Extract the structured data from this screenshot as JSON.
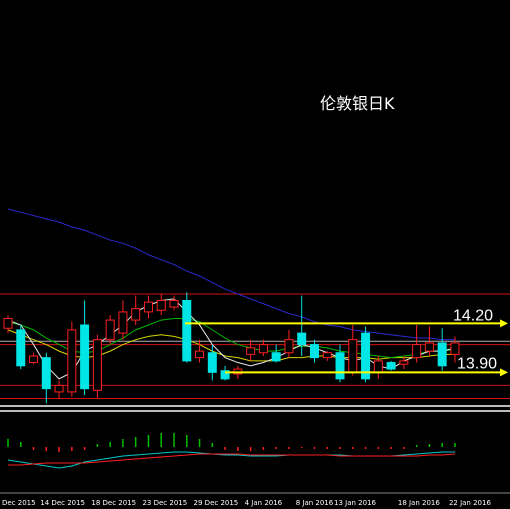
{
  "chart_data": [
    {
      "type": "candlestick",
      "title": "伦敦银日K",
      "categories": [
        "Dec 2015",
        null,
        null,
        "14 Dec 2015",
        null,
        null,
        null,
        "18 Dec 2015",
        null,
        null,
        null,
        "23 Dec 2015",
        null,
        null,
        null,
        "29 Dec 2015",
        null,
        null,
        null,
        "4 Jan 2016",
        null,
        null,
        null,
        "8 Jan 2016",
        null,
        null,
        "13 Jan 2016",
        null,
        null,
        null,
        null,
        "18 Jan 2016",
        null,
        null,
        null,
        "22 Jan 2016"
      ],
      "open": [
        14.17,
        14.16,
        13.96,
        13.99,
        13.78,
        13.78,
        14.19,
        13.79,
        14.1,
        14.14,
        14.22,
        14.27,
        14.28,
        14.3,
        14.34,
        13.99,
        14.02,
        13.91,
        13.89,
        14.01,
        14.02,
        14.02,
        14.02,
        14.14,
        14.07,
        13.99,
        14.02,
        13.9,
        14.14,
        13.9,
        13.96,
        13.95,
        13.99,
        14.03,
        14.08,
        14.01
      ],
      "high": [
        14.25,
        14.19,
        14.02,
        14.02,
        13.85,
        14.21,
        14.34,
        14.13,
        14.25,
        14.34,
        14.37,
        14.37,
        14.38,
        14.37,
        14.39,
        14.1,
        14.07,
        13.94,
        13.94,
        14.1,
        14.1,
        14.07,
        14.16,
        14.37,
        14.1,
        14.03,
        14.07,
        14.19,
        14.18,
        14.0,
        13.97,
        14.0,
        14.19,
        14.18,
        14.17,
        14.12
      ],
      "low": [
        14.14,
        13.92,
        13.95,
        13.71,
        13.74,
        13.75,
        13.76,
        13.74,
        14.07,
        14.1,
        14.19,
        14.23,
        14.25,
        14.28,
        13.96,
        13.96,
        13.85,
        13.85,
        13.86,
        13.97,
        14.0,
        13.96,
        13.99,
        14.0,
        13.96,
        13.97,
        13.84,
        13.88,
        13.84,
        13.86,
        13.91,
        13.92,
        13.96,
        14.0,
        13.91,
        13.96
      ],
      "close": [
        14.23,
        13.94,
        14.0,
        13.8,
        13.82,
        14.16,
        13.8,
        14.1,
        14.22,
        14.27,
        14.29,
        14.33,
        14.34,
        14.34,
        13.97,
        14.03,
        13.9,
        13.86,
        13.92,
        14.05,
        14.07,
        13.97,
        14.1,
        14.07,
        13.99,
        14.02,
        13.86,
        14.1,
        13.86,
        13.97,
        13.92,
        13.97,
        14.07,
        14.08,
        13.94,
        14.08
      ],
      "up_color": "#ff2020",
      "down_color": "#00e5e5",
      "ylim": [
        13.7,
        16.18
      ],
      "ma_lines": [
        {
          "color": "#2a2ad0",
          "values": [
            14.9,
            14.88,
            14.86,
            14.84,
            14.82,
            14.79,
            14.77,
            14.74,
            14.71,
            14.69,
            14.66,
            14.62,
            14.59,
            14.56,
            14.52,
            14.49,
            14.45,
            14.41,
            14.38,
            14.35,
            14.32,
            14.29,
            14.26,
            14.24,
            14.21,
            14.19,
            14.18,
            14.16,
            14.15,
            14.14,
            14.13,
            14.12,
            14.11,
            14.11,
            14.1,
            14.1
          ]
        },
        {
          "color": "#d8d800",
          "values": [
            14.16,
            14.13,
            14.1,
            14.07,
            14.03,
            14.0,
            13.99,
            14.0,
            14.03,
            14.07,
            14.1,
            14.12,
            14.13,
            14.12,
            14.1,
            14.07,
            14.03,
            14.0,
            13.99,
            13.97,
            13.97,
            13.97,
            13.99,
            13.99,
            14.0,
            14.0,
            13.99,
            13.99,
            13.99,
            13.98,
            13.99,
            13.99,
            13.99,
            14.0,
            14.01,
            14.01
          ]
        },
        {
          "color": "#00b800",
          "values": [
            14.21,
            14.19,
            14.16,
            14.11,
            14.07,
            14.03,
            14.02,
            14.03,
            14.07,
            14.11,
            14.16,
            14.19,
            14.22,
            14.23,
            14.23,
            14.21,
            14.16,
            14.11,
            14.07,
            14.05,
            14.03,
            14.03,
            14.05,
            14.06,
            14.06,
            14.05,
            14.03,
            14.02,
            14.01,
            14.0,
            13.99,
            14.0,
            14.01,
            14.03,
            14.03,
            14.04
          ]
        },
        {
          "color": "#e8e8e8",
          "values": [
            14.22,
            14.19,
            14.07,
            13.94,
            13.86,
            13.9,
            14.03,
            14.07,
            14.13,
            14.19,
            14.27,
            14.31,
            14.34,
            14.35,
            14.27,
            14.19,
            14.07,
            13.99,
            13.96,
            13.94,
            13.96,
            13.99,
            14.03,
            14.07,
            14.05,
            14.02,
            13.99,
            13.97,
            13.99,
            13.94,
            13.92,
            13.97,
            14.0,
            14.03,
            14.03,
            14.05
          ]
        }
      ],
      "levels": [
        {
          "value": 14.2,
          "label": "14.20"
        },
        {
          "value": 13.9,
          "label": "13.90"
        }
      ],
      "level_color": "#ffff00",
      "red_lines": [
        14.38,
        14.07,
        13.82,
        13.74
      ],
      "red_line_color": "#d01010",
      "price_line": 14.09,
      "price_line_color": "#b0b0b0"
    },
    {
      "type": "histogram-indicator",
      "values": [
        0.008,
        0.005,
        -0.003,
        -0.004,
        -0.005,
        -0.004,
        -0.003,
        0.003,
        0.005,
        0.008,
        0.01,
        0.012,
        0.014,
        0.014,
        0.012,
        0.008,
        0.004,
        -0.003,
        -0.004,
        -0.004,
        -0.003,
        -0.002,
        -0.002,
        -0.001,
        -0.002,
        -0.002,
        -0.002,
        -0.002,
        -0.002,
        -0.002,
        -0.002,
        -0.002,
        0.002,
        0.003,
        0.004,
        0.004
      ],
      "up_color": "#00c000",
      "down_color": "#ff2020",
      "ylim": [
        -0.035,
        0.035
      ],
      "lines": [
        {
          "color": "#00c8c8",
          "values": [
            -0.013,
            -0.015,
            -0.017,
            -0.019,
            -0.021,
            -0.019,
            -0.015,
            -0.013,
            -0.011,
            -0.009,
            -0.008,
            -0.007,
            -0.006,
            -0.005,
            -0.005,
            -0.006,
            -0.007,
            -0.008,
            -0.008,
            -0.009,
            -0.009,
            -0.009,
            -0.008,
            -0.008,
            -0.008,
            -0.008,
            -0.008,
            -0.009,
            -0.009,
            -0.009,
            -0.009,
            -0.008,
            -0.007,
            -0.006,
            -0.005,
            -0.005
          ]
        },
        {
          "color": "#ff2020",
          "values": [
            -0.018,
            -0.018,
            -0.017,
            -0.016,
            -0.016,
            -0.016,
            -0.016,
            -0.015,
            -0.014,
            -0.013,
            -0.012,
            -0.011,
            -0.01,
            -0.009,
            -0.008,
            -0.007,
            -0.007,
            -0.007,
            -0.007,
            -0.008,
            -0.008,
            -0.008,
            -0.008,
            -0.008,
            -0.008,
            -0.008,
            -0.009,
            -0.009,
            -0.009,
            -0.009,
            -0.009,
            -0.009,
            -0.009,
            -0.008,
            -0.008,
            -0.007
          ]
        }
      ]
    }
  ]
}
